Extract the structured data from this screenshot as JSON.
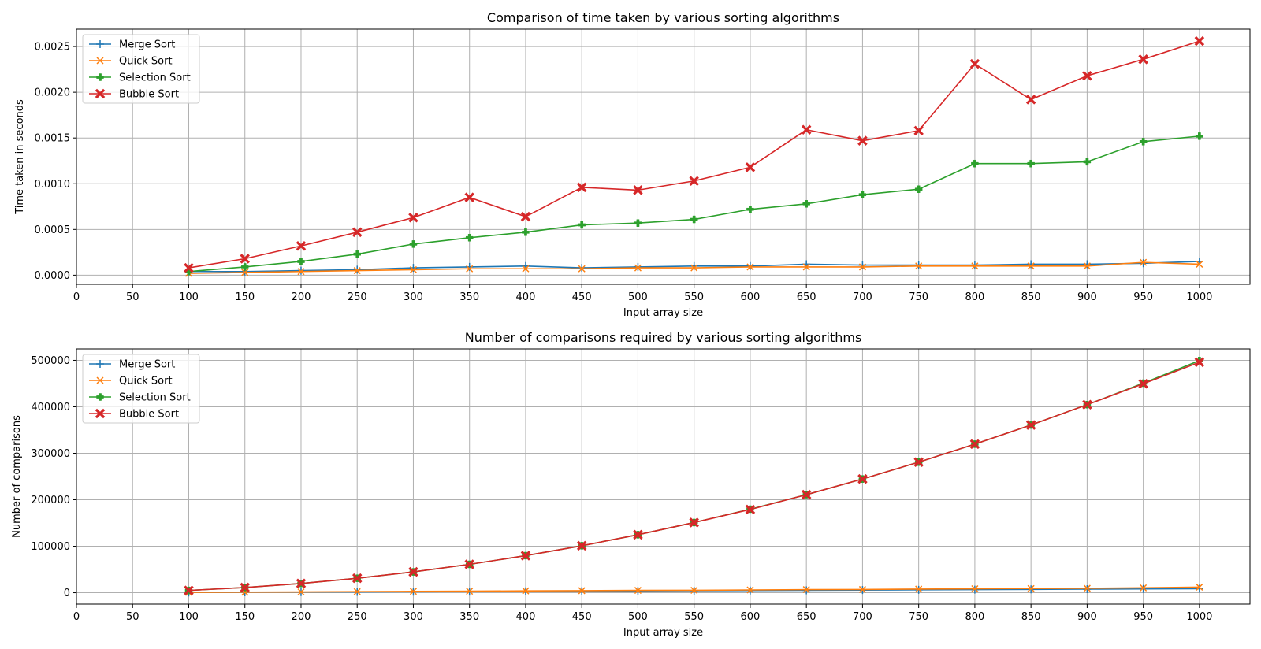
{
  "chart_data": [
    {
      "type": "line",
      "title": "Comparison of time taken by various sorting algorithms",
      "xlabel": "Input array size",
      "ylabel": "Time taken in seconds",
      "xlim": [
        0,
        1045
      ],
      "ylim": [
        -0.0001,
        0.00269
      ],
      "xticks": [
        0,
        50,
        100,
        150,
        200,
        250,
        300,
        350,
        400,
        450,
        500,
        550,
        600,
        650,
        700,
        750,
        800,
        850,
        900,
        950,
        1000
      ],
      "yticks": [
        0.0,
        0.0005,
        0.001,
        0.0015,
        0.002,
        0.0025
      ],
      "ytick_labels": [
        "0.0000",
        "0.0005",
        "0.0010",
        "0.0015",
        "0.0020",
        "0.0025"
      ],
      "grid": true,
      "legend_position": "top-left",
      "x": [
        100,
        150,
        200,
        250,
        300,
        350,
        400,
        450,
        500,
        550,
        600,
        650,
        700,
        750,
        800,
        850,
        900,
        950,
        1000
      ],
      "series": [
        {
          "name": "Merge Sort",
          "color": "#1f77b4",
          "marker": "plus",
          "values": [
            4e-05,
            4e-05,
            5e-05,
            6e-05,
            8e-05,
            9e-05,
            0.0001,
            8e-05,
            9e-05,
            0.0001,
            0.0001,
            0.00012,
            0.00011,
            0.00011,
            0.00011,
            0.00012,
            0.00012,
            0.00013,
            0.00015
          ]
        },
        {
          "name": "Quick Sort",
          "color": "#ff7f0e",
          "marker": "x",
          "values": [
            2e-05,
            3e-05,
            4e-05,
            5e-05,
            6e-05,
            7e-05,
            7e-05,
            7e-05,
            8e-05,
            8e-05,
            9e-05,
            9e-05,
            9e-05,
            0.0001,
            0.0001,
            0.0001,
            0.0001,
            0.00014,
            0.00012
          ]
        },
        {
          "name": "Selection Sort",
          "color": "#2ca02c",
          "marker": "pluscross",
          "values": [
            4e-05,
            9e-05,
            0.00015,
            0.00023,
            0.00034,
            0.00041,
            0.00047,
            0.00055,
            0.00057,
            0.00061,
            0.00072,
            0.00078,
            0.00088,
            0.00094,
            0.00122,
            0.00122,
            0.00124,
            0.00146,
            0.00152
          ]
        },
        {
          "name": "Bubble Sort",
          "color": "#d62728",
          "marker": "xfilled",
          "values": [
            8e-05,
            0.00018,
            0.00032,
            0.00047,
            0.00063,
            0.00085,
            0.00064,
            0.00096,
            0.00093,
            0.00103,
            0.00118,
            0.00159,
            0.00147,
            0.00158,
            0.00231,
            0.00192,
            0.00218,
            0.00236,
            0.00256
          ]
        }
      ]
    },
    {
      "type": "line",
      "title": "Number of comparisons required by various sorting algorithms",
      "xlabel": "Input array size",
      "ylabel": "Number of comparisons",
      "xlim": [
        0,
        1045
      ],
      "ylim": [
        -24500,
        524500
      ],
      "xticks": [
        0,
        50,
        100,
        150,
        200,
        250,
        300,
        350,
        400,
        450,
        500,
        550,
        600,
        650,
        700,
        750,
        800,
        850,
        900,
        950,
        1000
      ],
      "yticks": [
        0,
        100000,
        200000,
        300000,
        400000,
        500000
      ],
      "ytick_labels": [
        "0",
        "100000",
        "200000",
        "300000",
        "400000",
        "500000"
      ],
      "grid": true,
      "legend_position": "top-left",
      "x": [
        100,
        150,
        200,
        250,
        300,
        350,
        400,
        450,
        500,
        550,
        600,
        650,
        700,
        750,
        800,
        850,
        900,
        950,
        1000
      ],
      "series": [
        {
          "name": "Merge Sort",
          "color": "#1f77b4",
          "marker": "plus",
          "values": [
            540,
            900,
            1300,
            1700,
            2100,
            2500,
            3000,
            3400,
            3900,
            4300,
            4800,
            5200,
            5700,
            6200,
            6700,
            7200,
            7700,
            8200,
            8700
          ]
        },
        {
          "name": "Quick Sort",
          "color": "#ff7f0e",
          "marker": "x",
          "values": [
            700,
            1200,
            1700,
            2300,
            2900,
            3300,
            4000,
            4400,
            5000,
            5200,
            6000,
            6700,
            7000,
            7800,
            8500,
            9000,
            9500,
            10500,
            12000
          ]
        },
        {
          "name": "Selection Sort",
          "color": "#2ca02c",
          "marker": "pluscross",
          "values": [
            4950,
            11175,
            19900,
            31125,
            44850,
            61075,
            79800,
            101025,
            124750,
            150975,
            179700,
            210925,
            244650,
            280875,
            319600,
            360825,
            404550,
            450775,
            499500
          ]
        },
        {
          "name": "Bubble Sort",
          "color": "#d62728",
          "marker": "xfilled",
          "values": [
            4950,
            11175,
            19900,
            31125,
            44850,
            61075,
            79800,
            101025,
            124750,
            150975,
            179100,
            210925,
            244650,
            280875,
            319600,
            360825,
            404550,
            449500,
            496000
          ]
        }
      ]
    }
  ]
}
